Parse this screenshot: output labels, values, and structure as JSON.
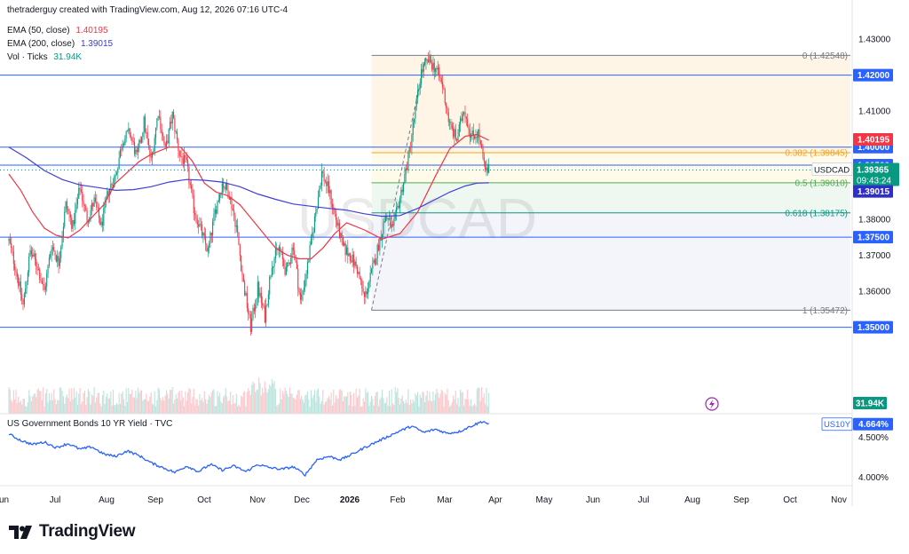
{
  "header": {
    "publisher": "thetraderguy created with TradingView.com, Aug 12, 2026 07:16 UTC-4"
  },
  "legend": [
    {
      "label": "EMA (50, close)",
      "value": "1.40195",
      "color": "#f23645"
    },
    {
      "label": "EMA (200, close)",
      "value": "1.39015",
      "color": "#3b3bd9"
    },
    {
      "label": "Vol · Ticks",
      "value": "31.94K",
      "color": "#089981"
    }
  ],
  "lower_legend": {
    "label": "US Government Bonds 10 YR Yield · TVC"
  },
  "watermark": "USDCAD",
  "brand": "TradingView",
  "colors": {
    "up": "#089981",
    "down": "#f23645",
    "ema50": "#f23645",
    "ema200": "#3f3fd8",
    "hline": "#2962ff",
    "fib382": "#f7a21b",
    "fib618": "#089981",
    "yield": "#2962ff"
  },
  "chart_data": [
    {
      "type": "candlestick",
      "symbol": "USDCAD",
      "ylim": [
        1.3465,
        1.4315
      ],
      "y_ticks": [
        "1.43000",
        "1.41000",
        "1.38000",
        "1.37000",
        "1.36000"
      ],
      "x_ticks": [
        "Jun",
        "Jul",
        "Aug",
        "Sep",
        "Oct",
        "Nov",
        "Dec",
        "2026",
        "Feb",
        "Mar",
        "Apr",
        "May",
        "Jun",
        "Jul",
        "Aug",
        "Sep",
        "Oct",
        "Nov"
      ],
      "key_path": [
        [
          0,
          1.374
        ],
        [
          6,
          1.366
        ],
        [
          12,
          1.356
        ],
        [
          18,
          1.371
        ],
        [
          24,
          1.367
        ],
        [
          30,
          1.36
        ],
        [
          36,
          1.373
        ],
        [
          42,
          1.368
        ],
        [
          48,
          1.384
        ],
        [
          54,
          1.378
        ],
        [
          60,
          1.389
        ],
        [
          66,
          1.38
        ],
        [
          72,
          1.385
        ],
        [
          78,
          1.378
        ],
        [
          84,
          1.388
        ],
        [
          90,
          1.392
        ],
        [
          96,
          1.402
        ],
        [
          102,
          1.404
        ],
        [
          108,
          1.397
        ],
        [
          114,
          1.407
        ],
        [
          120,
          1.396
        ],
        [
          126,
          1.41
        ],
        [
          132,
          1.399
        ],
        [
          138,
          1.409
        ],
        [
          144,
          1.398
        ],
        [
          150,
          1.395
        ],
        [
          156,
          1.383
        ],
        [
          162,
          1.377
        ],
        [
          168,
          1.371
        ],
        [
          174,
          1.382
        ],
        [
          180,
          1.39
        ],
        [
          186,
          1.387
        ],
        [
          192,
          1.378
        ],
        [
          198,
          1.362
        ],
        [
          204,
          1.35
        ],
        [
          210,
          1.361
        ],
        [
          216,
          1.353
        ],
        [
          222,
          1.368
        ],
        [
          228,
          1.372
        ],
        [
          234,
          1.365
        ],
        [
          240,
          1.373
        ],
        [
          246,
          1.357
        ],
        [
          252,
          1.367
        ],
        [
          258,
          1.38
        ],
        [
          264,
          1.393
        ],
        [
          270,
          1.388
        ],
        [
          276,
          1.38
        ],
        [
          282,
          1.372
        ],
        [
          288,
          1.37
        ],
        [
          294,
          1.366
        ],
        [
          300,
          1.358
        ],
        [
          306,
          1.365
        ],
        [
          312,
          1.373
        ],
        [
          318,
          1.381
        ],
        [
          324,
          1.377
        ],
        [
          330,
          1.386
        ],
        [
          336,
          1.395
        ],
        [
          342,
          1.408
        ],
        [
          348,
          1.421
        ],
        [
          354,
          1.424
        ],
        [
          360,
          1.422
        ],
        [
          366,
          1.417
        ],
        [
          372,
          1.406
        ],
        [
          378,
          1.402
        ],
        [
          384,
          1.411
        ],
        [
          390,
          1.403
        ],
        [
          396,
          1.404
        ],
        [
          402,
          1.393
        ],
        [
          405,
          1.3936
        ]
      ],
      "ema50_path": [
        [
          0,
          1.3925
        ],
        [
          10,
          1.388
        ],
        [
          20,
          1.382
        ],
        [
          30,
          1.3775
        ],
        [
          40,
          1.3755
        ],
        [
          50,
          1.3748
        ],
        [
          60,
          1.377
        ],
        [
          70,
          1.3805
        ],
        [
          80,
          1.384
        ],
        [
          90,
          1.39
        ],
        [
          100,
          1.393
        ],
        [
          110,
          1.396
        ],
        [
          120,
          1.398
        ],
        [
          135,
          1.4
        ],
        [
          145,
          1.4
        ],
        [
          155,
          1.396
        ],
        [
          165,
          1.39
        ],
        [
          175,
          1.3875
        ],
        [
          185,
          1.3865
        ],
        [
          195,
          1.384
        ],
        [
          205,
          1.38
        ],
        [
          215,
          1.376
        ],
        [
          225,
          1.372
        ],
        [
          235,
          1.37
        ],
        [
          245,
          1.369
        ],
        [
          255,
          1.369
        ],
        [
          265,
          1.372
        ],
        [
          275,
          1.376
        ],
        [
          285,
          1.379
        ],
        [
          300,
          1.377
        ],
        [
          315,
          1.3745
        ],
        [
          330,
          1.376
        ],
        [
          345,
          1.382
        ],
        [
          360,
          1.392
        ],
        [
          372,
          1.3995
        ],
        [
          385,
          1.403
        ],
        [
          395,
          1.4035
        ],
        [
          405,
          1.4019
        ]
      ],
      "ema200_path": [
        [
          0,
          1.4
        ],
        [
          15,
          1.397
        ],
        [
          30,
          1.3935
        ],
        [
          45,
          1.391
        ],
        [
          60,
          1.3895
        ],
        [
          75,
          1.3888
        ],
        [
          90,
          1.388
        ],
        [
          105,
          1.3882
        ],
        [
          120,
          1.389
        ],
        [
          135,
          1.3903
        ],
        [
          150,
          1.391
        ],
        [
          165,
          1.3908
        ],
        [
          180,
          1.3903
        ],
        [
          195,
          1.389
        ],
        [
          210,
          1.387
        ],
        [
          225,
          1.3855
        ],
        [
          240,
          1.3842
        ],
        [
          255,
          1.3836
        ],
        [
          270,
          1.383
        ],
        [
          285,
          1.3825
        ],
        [
          300,
          1.3815
        ],
        [
          315,
          1.3808
        ],
        [
          330,
          1.381
        ],
        [
          345,
          1.383
        ],
        [
          360,
          1.3855
        ],
        [
          372,
          1.3875
        ],
        [
          385,
          1.3892
        ],
        [
          395,
          1.39
        ],
        [
          405,
          1.3901
        ]
      ],
      "horizontal_levels": [
        {
          "price": 1.42,
          "label": "1.42000"
        },
        {
          "price": 1.4,
          "label": "1.40000"
        },
        {
          "price": 1.395,
          "label": "1.39500"
        },
        {
          "price": 1.375,
          "label": "1.37500"
        },
        {
          "price": 1.35,
          "label": "1.35000"
        }
      ],
      "fibonacci": {
        "start_bar": 306,
        "levels": [
          {
            "ratio": "0",
            "price": 1.42548,
            "label": "0 (1.42548)"
          },
          {
            "ratio": "0.382",
            "price": 1.39845,
            "label": "0.382 (1.39845)"
          },
          {
            "ratio": "0.5",
            "price": 1.3901,
            "label": "0.5 (1.39010)"
          },
          {
            "ratio": "0.618",
            "price": 1.38175,
            "label": "0.618 (1.38175)"
          },
          {
            "ratio": "1",
            "price": 1.35472,
            "label": "1 (1.35472)"
          }
        ]
      },
      "price_labels": {
        "ema50": "1.40195",
        "symbol": "USDCAD",
        "last": "1.39365",
        "countdown": "09:43:24",
        "ema200": "1.39015",
        "last_price": 1.39365,
        "volume": "31.94K"
      }
    },
    {
      "type": "line",
      "series_name": "US10Y",
      "ylim": [
        3.95,
        4.78
      ],
      "y_ticks": [
        "4.500%",
        "4.000%"
      ],
      "last_label": "4.664%",
      "last_value": 4.664,
      "key_path": [
        [
          0,
          4.54
        ],
        [
          10,
          4.46
        ],
        [
          20,
          4.41
        ],
        [
          30,
          4.44
        ],
        [
          40,
          4.37
        ],
        [
          50,
          4.42
        ],
        [
          60,
          4.35
        ],
        [
          70,
          4.38
        ],
        [
          80,
          4.29
        ],
        [
          90,
          4.26
        ],
        [
          100,
          4.33
        ],
        [
          110,
          4.27
        ],
        [
          120,
          4.18
        ],
        [
          130,
          4.12
        ],
        [
          140,
          4.06
        ],
        [
          150,
          4.14
        ],
        [
          160,
          4.07
        ],
        [
          170,
          4.16
        ],
        [
          180,
          4.09
        ],
        [
          190,
          4.14
        ],
        [
          200,
          4.07
        ],
        [
          210,
          4.16
        ],
        [
          220,
          4.12
        ],
        [
          230,
          4.1
        ],
        [
          240,
          4.13
        ],
        [
          250,
          4.03
        ],
        [
          260,
          4.22
        ],
        [
          270,
          4.26
        ],
        [
          280,
          4.22
        ],
        [
          290,
          4.29
        ],
        [
          300,
          4.37
        ],
        [
          310,
          4.44
        ],
        [
          320,
          4.51
        ],
        [
          330,
          4.58
        ],
        [
          340,
          4.64
        ],
        [
          350,
          4.56
        ],
        [
          360,
          4.6
        ],
        [
          370,
          4.55
        ],
        [
          380,
          4.57
        ],
        [
          390,
          4.64
        ],
        [
          400,
          4.7
        ],
        [
          405,
          4.664
        ]
      ]
    }
  ]
}
